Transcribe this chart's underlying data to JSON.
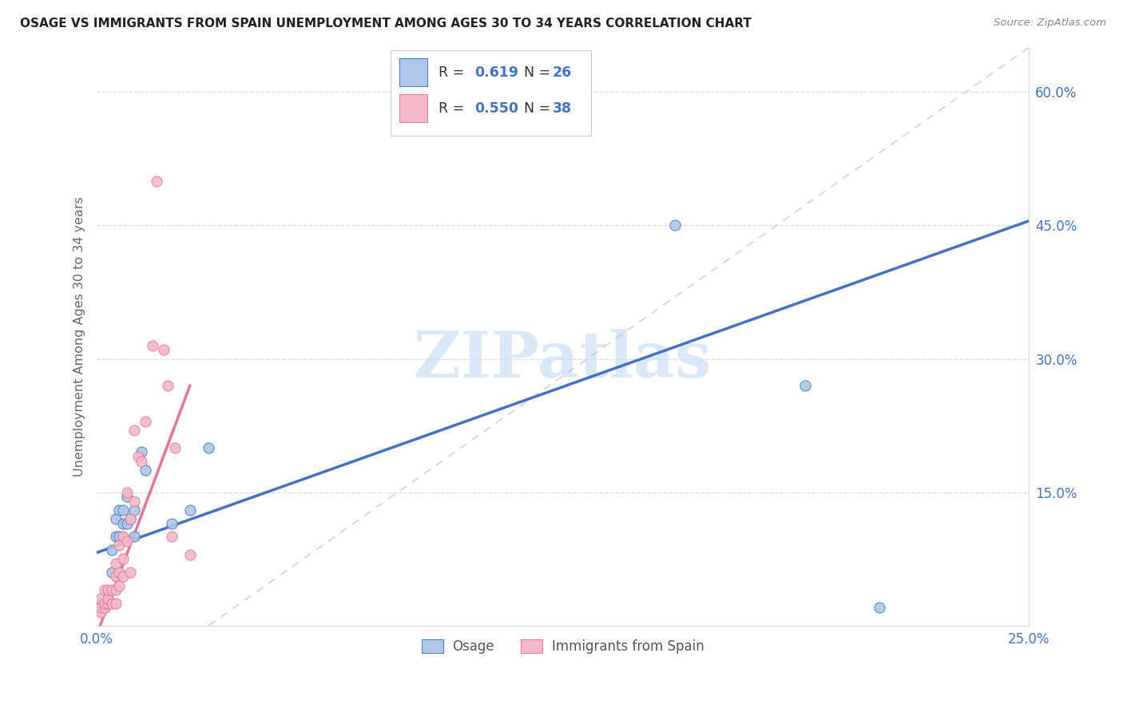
{
  "title": "OSAGE VS IMMIGRANTS FROM SPAIN UNEMPLOYMENT AMONG AGES 30 TO 34 YEARS CORRELATION CHART",
  "source": "Source: ZipAtlas.com",
  "ylabel": "Unemployment Among Ages 30 to 34 years",
  "xlim": [
    0.0,
    0.25
  ],
  "ylim": [
    0.0,
    0.65
  ],
  "xtick_positions": [
    0.0,
    0.05,
    0.1,
    0.15,
    0.2,
    0.25
  ],
  "xtick_labels": [
    "0.0%",
    "",
    "",
    "",
    "",
    "25.0%"
  ],
  "ytick_positions": [
    0.0,
    0.15,
    0.3,
    0.45,
    0.6
  ],
  "ytick_labels": [
    "",
    "15.0%",
    "30.0%",
    "45.0%",
    "60.0%"
  ],
  "osage_fill_color": "#aec6e8",
  "osage_edge_color": "#4472c4",
  "spain_fill_color": "#f4b8c8",
  "spain_edge_color": "#e8749a",
  "blue_line_color": "#4472c4",
  "pink_line_color": "#e8749a",
  "ref_line_color": "#c8c8c8",
  "axis_color": "#d0d8e8",
  "tick_label_color": "#4472c4",
  "ylabel_color": "#666666",
  "title_color": "#222222",
  "source_color": "#888888",
  "watermark_text": "ZIPatlas",
  "watermark_color": "#ccdff5",
  "legend_edge_color": "#cccccc",
  "legend_R_color": "#4472c4",
  "R_osage": "0.619",
  "N_osage": "26",
  "R_spain": "0.550",
  "N_spain": "38",
  "legend_label1": "Osage",
  "legend_label2": "Immigrants from Spain",
  "osage_x": [
    0.001,
    0.002,
    0.003,
    0.003,
    0.004,
    0.004,
    0.005,
    0.005,
    0.006,
    0.006,
    0.007,
    0.007,
    0.008,
    0.008,
    0.009,
    0.01,
    0.01,
    0.012,
    0.013,
    0.02,
    0.025,
    0.03,
    0.12,
    0.155,
    0.19,
    0.21
  ],
  "osage_y": [
    0.025,
    0.02,
    0.025,
    0.03,
    0.06,
    0.085,
    0.1,
    0.12,
    0.1,
    0.13,
    0.115,
    0.13,
    0.145,
    0.115,
    0.12,
    0.13,
    0.1,
    0.195,
    0.175,
    0.115,
    0.13,
    0.2,
    0.575,
    0.45,
    0.27,
    0.02
  ],
  "spain_x": [
    0.0,
    0.001,
    0.001,
    0.001,
    0.002,
    0.002,
    0.002,
    0.003,
    0.003,
    0.003,
    0.004,
    0.004,
    0.005,
    0.005,
    0.005,
    0.005,
    0.006,
    0.006,
    0.006,
    0.007,
    0.007,
    0.007,
    0.008,
    0.008,
    0.009,
    0.009,
    0.01,
    0.01,
    0.011,
    0.012,
    0.013,
    0.015,
    0.016,
    0.018,
    0.019,
    0.02,
    0.021,
    0.025
  ],
  "spain_y": [
    0.02,
    0.015,
    0.02,
    0.03,
    0.02,
    0.025,
    0.04,
    0.025,
    0.03,
    0.04,
    0.025,
    0.04,
    0.025,
    0.04,
    0.055,
    0.07,
    0.045,
    0.06,
    0.09,
    0.055,
    0.075,
    0.1,
    0.095,
    0.15,
    0.06,
    0.12,
    0.14,
    0.22,
    0.19,
    0.185,
    0.23,
    0.315,
    0.5,
    0.31,
    0.27,
    0.1,
    0.2,
    0.08
  ],
  "blue_line_x0": 0.0,
  "blue_line_y0": 0.082,
  "blue_line_x1": 0.25,
  "blue_line_y1": 0.455,
  "pink_line_x0": 0.0,
  "pink_line_y0": -0.01,
  "pink_line_x1": 0.025,
  "pink_line_y1": 0.27,
  "ref_line_x0": 0.03,
  "ref_line_y0": 0.0,
  "ref_line_x1": 0.25,
  "ref_line_y1": 0.65
}
